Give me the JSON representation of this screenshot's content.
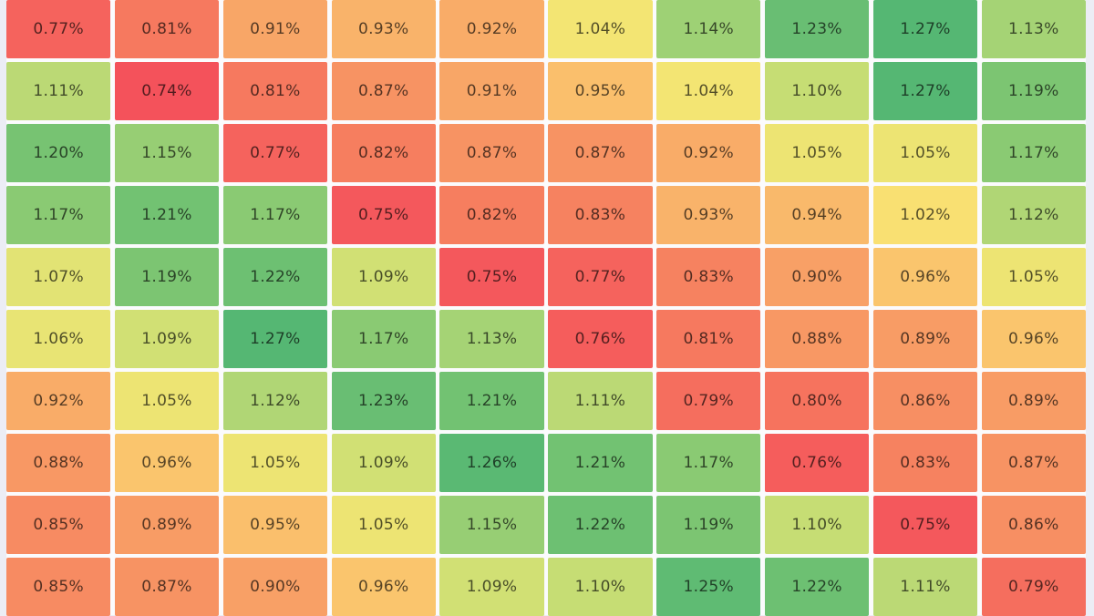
{
  "page": {
    "background": "#ecedf5",
    "grid_gap_color": "#fbfbfd"
  },
  "chart_data": {
    "type": "heatmap",
    "unit": "%",
    "rows": 10,
    "cols": 10,
    "min": 0.74,
    "max": 1.27,
    "values": [
      [
        0.77,
        0.81,
        0.91,
        0.93,
        0.92,
        1.04,
        1.14,
        1.23,
        1.27,
        1.13
      ],
      [
        1.11,
        0.74,
        0.81,
        0.87,
        0.91,
        0.95,
        1.04,
        1.1,
        1.27,
        1.19
      ],
      [
        1.2,
        1.15,
        0.77,
        0.82,
        0.87,
        0.87,
        0.92,
        1.05,
        1.05,
        1.17
      ],
      [
        1.17,
        1.21,
        1.17,
        0.75,
        0.82,
        0.83,
        0.93,
        0.94,
        1.02,
        1.12
      ],
      [
        1.07,
        1.19,
        1.22,
        1.09,
        0.75,
        0.77,
        0.83,
        0.9,
        0.96,
        1.05
      ],
      [
        1.06,
        1.09,
        1.27,
        1.17,
        1.13,
        0.76,
        0.81,
        0.88,
        0.89,
        0.96
      ],
      [
        0.92,
        1.05,
        1.12,
        1.23,
        1.21,
        1.11,
        0.79,
        0.8,
        0.86,
        0.89
      ],
      [
        0.88,
        0.96,
        1.05,
        1.09,
        1.26,
        1.21,
        1.17,
        0.76,
        0.83,
        0.87
      ],
      [
        0.85,
        0.89,
        0.95,
        1.05,
        1.15,
        1.22,
        1.19,
        1.1,
        0.75,
        0.86
      ],
      [
        0.85,
        0.87,
        0.9,
        0.96,
        1.09,
        1.1,
        1.25,
        1.22,
        1.11,
        0.79
      ]
    ],
    "value_suffix": "%",
    "value_decimals": 2,
    "text_color": "rgba(0,0,0,0.66)",
    "color_scale": {
      "stops": [
        {
          "value": 0.74,
          "color": "#f4525b"
        },
        {
          "value": 0.82,
          "color": "#f67e5f"
        },
        {
          "value": 0.9,
          "color": "#f8a066"
        },
        {
          "value": 0.96,
          "color": "#fac56d"
        },
        {
          "value": 1.03,
          "color": "#f9e573"
        },
        {
          "value": 1.08,
          "color": "#dce374"
        },
        {
          "value": 1.13,
          "color": "#a5d375"
        },
        {
          "value": 1.19,
          "color": "#7cc572"
        },
        {
          "value": 1.27,
          "color": "#55b773"
        }
      ]
    }
  }
}
